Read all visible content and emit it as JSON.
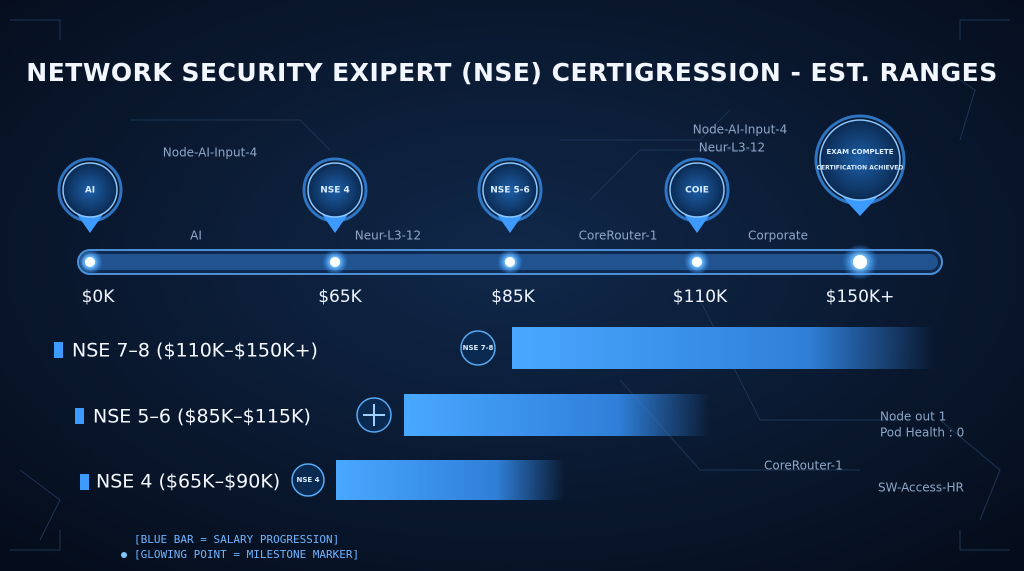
{
  "header": {
    "title": "NETWORK SECURITY EXIPERT (NSE) CERTIGRESSION - EST. RANGES"
  },
  "timeline": {
    "milestones": [
      {
        "badge": "AI",
        "salary": "$0K"
      },
      {
        "badge": "NSE 4",
        "salary": "$65K"
      },
      {
        "badge": "NSE 5-6",
        "salary": "$85K"
      },
      {
        "badge": "COIE",
        "salary": "$110K"
      },
      {
        "badge": "EXAM COMPLETE",
        "badge_sub": "CERTIFICATION ACHIEVED",
        "salary": "$150K+"
      }
    ],
    "node_labels": [
      "Node-AI-Input-4",
      "AI",
      "Neur-L3-12",
      "CoreRouter-1",
      "Corporate",
      "Node-AI-Input-4",
      "Neur-L3-12"
    ]
  },
  "tiers": [
    {
      "label": "NSE 7–8 ($110K–$150K+)",
      "badge": "NSE 7-8"
    },
    {
      "label": "NSE 5–6 ($85K–$115K)"
    },
    {
      "label": "NSE 4 ($65K–$90K)",
      "badge": "NSE 4"
    }
  ],
  "side_labels": [
    "Node out 1",
    "Pod Health : 0",
    "CoreRouter-1",
    "SW-Access-HR"
  ],
  "legend": [
    "[BLUE BAR = SALARY PROGRESSION]",
    "[GLOWING POINT = MILESTONE MARKER]"
  ]
}
